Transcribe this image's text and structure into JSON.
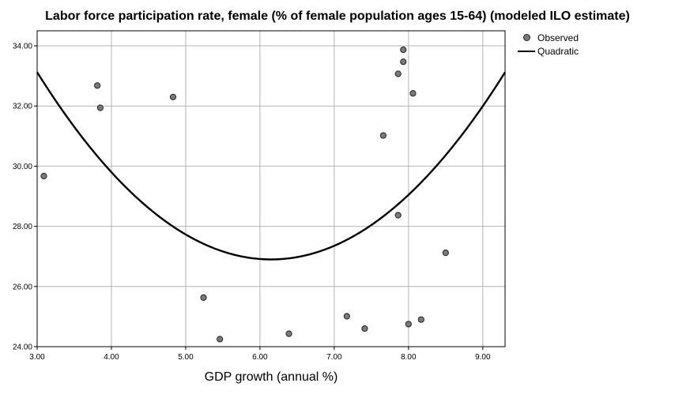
{
  "chart_data": {
    "type": "scatter",
    "title": "Labor force participation rate, female (% of female population ages 15-64) (modeled ILO estimate)",
    "xlabel": "GDP growth (annual %)",
    "ylabel": "",
    "xlim": [
      3.0,
      9.3
    ],
    "ylim": [
      24.0,
      34.5
    ],
    "x_ticks": [
      "3.00",
      "4.00",
      "5.00",
      "6.00",
      "7.00",
      "8.00",
      "9.00"
    ],
    "y_ticks": [
      "24.00",
      "26.00",
      "28.00",
      "30.00",
      "32.00",
      "34.00"
    ],
    "x_tick_values": [
      3,
      4,
      5,
      6,
      7,
      8,
      9
    ],
    "y_tick_values": [
      24,
      26,
      28,
      30,
      32,
      34
    ],
    "grid": true,
    "legend_position": "top-right, outside plot",
    "series": [
      {
        "name": "Observed",
        "kind": "points",
        "color": "#7a7a7a",
        "x": [
          3.09,
          3.81,
          3.85,
          4.83,
          5.24,
          5.46,
          6.39,
          7.17,
          7.41,
          7.66,
          7.86,
          7.86,
          7.93,
          7.93,
          8.0,
          8.06,
          8.17,
          8.5
        ],
        "y": [
          29.67,
          32.68,
          31.94,
          32.3,
          25.63,
          24.25,
          24.43,
          25.01,
          24.6,
          31.02,
          28.37,
          33.07,
          33.47,
          33.87,
          24.75,
          32.42,
          24.9,
          27.12
        ]
      },
      {
        "name": "Quadratic",
        "kind": "fit-line",
        "color": "#000000",
        "coefficients": {
          "x_vertex": 6.15,
          "y_vertex": 26.9,
          "a": 0.6273
        }
      }
    ]
  }
}
